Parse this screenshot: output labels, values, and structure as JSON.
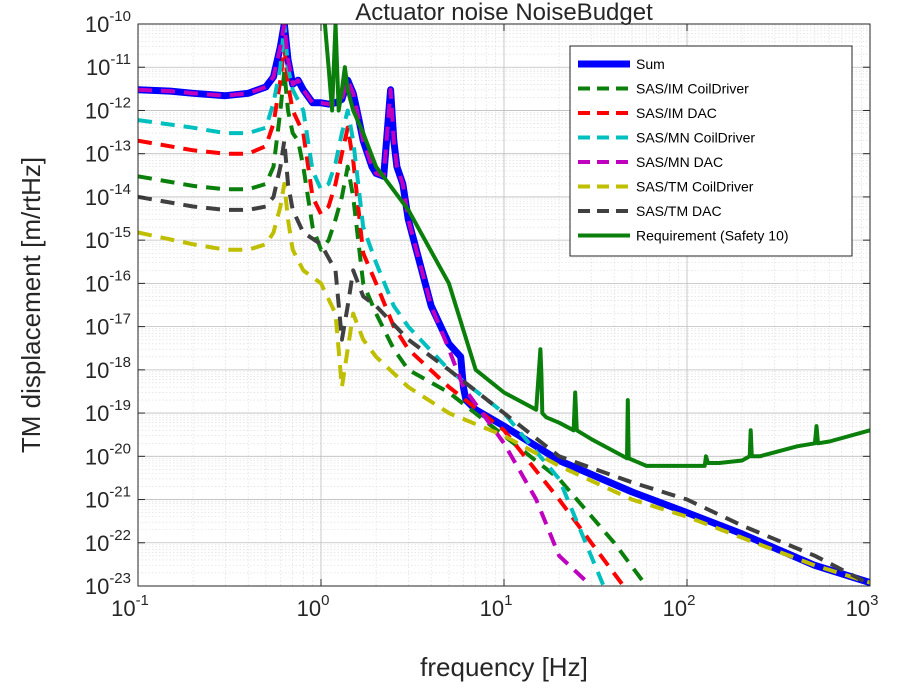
{
  "chart_data": {
    "type": "line",
    "title": "Actuator noise NoiseBudget",
    "xlabel": "frequency [Hz]",
    "ylabel": "TM displacement [m/rtHz]",
    "xscale": "log",
    "yscale": "log",
    "xlim": [
      0.1,
      1000
    ],
    "ylim": [
      1e-23,
      1e-10
    ],
    "grid": true,
    "minor_grid": true,
    "legend_position": "top-right",
    "x_ticks": [
      {
        "base": "10",
        "exp": "-1"
      },
      {
        "base": "10",
        "exp": "0"
      },
      {
        "base": "10",
        "exp": "1"
      },
      {
        "base": "10",
        "exp": "2"
      },
      {
        "base": "10",
        "exp": "3"
      }
    ],
    "y_ticks": [
      {
        "base": "10",
        "exp": "-10"
      },
      {
        "base": "10",
        "exp": "-11"
      },
      {
        "base": "10",
        "exp": "-12"
      },
      {
        "base": "10",
        "exp": "-13"
      },
      {
        "base": "10",
        "exp": "-14"
      },
      {
        "base": "10",
        "exp": "-15"
      },
      {
        "base": "10",
        "exp": "-16"
      },
      {
        "base": "10",
        "exp": "-17"
      },
      {
        "base": "10",
        "exp": "-18"
      },
      {
        "base": "10",
        "exp": "-19"
      },
      {
        "base": "10",
        "exp": "-20"
      },
      {
        "base": "10",
        "exp": "-21"
      },
      {
        "base": "10",
        "exp": "-22"
      },
      {
        "base": "10",
        "exp": "-23"
      }
    ],
    "series": [
      {
        "name": "Sum",
        "color": "#0000ff",
        "style": "solid",
        "width": 7,
        "x": [
          0.1,
          0.15,
          0.2,
          0.3,
          0.4,
          0.5,
          0.55,
          0.6,
          0.63,
          0.66,
          0.7,
          0.75,
          0.8,
          0.9,
          1.0,
          1.1,
          1.2,
          1.3,
          1.4,
          1.5,
          1.6,
          1.7,
          1.9,
          2.0,
          2.2,
          2.4,
          2.5,
          2.6,
          2.8,
          3,
          4,
          5,
          5.8,
          6,
          6.2,
          7,
          10,
          20,
          50,
          100,
          200,
          500,
          1000
        ],
        "y": [
          3e-12,
          2.8e-12,
          2.5e-12,
          2.2e-12,
          2.5e-12,
          3.5e-12,
          6e-12,
          3e-11,
          1e-10,
          1.5e-11,
          4e-12,
          5e-12,
          3e-12,
          1.5e-12,
          1.5e-12,
          1.4e-12,
          1.5e-12,
          1.8e-12,
          5e-12,
          2.5e-12,
          7e-13,
          2e-13,
          5e-14,
          3.5e-14,
          3e-14,
          3e-12,
          2e-13,
          5e-14,
          2e-14,
          3e-15,
          3e-17,
          4e-18,
          2e-18,
          4e-19,
          2e-19,
          1.2e-19,
          5e-20,
          8e-21,
          1.5e-21,
          5e-22,
          1.6e-22,
          3e-23,
          1.2e-23
        ]
      },
      {
        "name": "SAS/IM CoilDriver",
        "color": "#0b7f0b",
        "style": "dashed",
        "width": 4,
        "x": [
          0.1,
          0.2,
          0.3,
          0.4,
          0.5,
          0.55,
          0.6,
          0.63,
          0.66,
          0.7,
          0.75,
          0.8,
          0.9,
          1.0,
          1.1,
          1.2,
          1.3,
          1.4,
          1.5,
          1.7,
          2,
          2.5,
          3,
          5,
          10,
          20,
          40,
          60
        ],
        "y": [
          3e-14,
          1.8e-14,
          1.5e-14,
          1.5e-14,
          2e-14,
          5e-14,
          1e-12,
          8e-12,
          1e-12,
          3e-13,
          2e-13,
          5e-14,
          2e-15,
          6e-16,
          1e-15,
          3e-15,
          1e-14,
          5e-14,
          1e-14,
          1e-16,
          2e-17,
          3e-18,
          1e-18,
          3e-19,
          3e-20,
          3e-21,
          1e-22,
          1e-23
        ]
      },
      {
        "name": "SAS/IM DAC",
        "color": "#ff0000",
        "style": "dashed",
        "width": 4,
        "x": [
          0.1,
          0.2,
          0.3,
          0.4,
          0.5,
          0.55,
          0.6,
          0.63,
          0.66,
          0.7,
          0.8,
          0.9,
          1.0,
          1.1,
          1.2,
          1.3,
          1.4,
          1.5,
          1.7,
          2,
          2.5,
          3,
          5,
          10,
          20,
          30,
          45
        ],
        "y": [
          2e-13,
          1.2e-13,
          1e-13,
          1e-13,
          1.5e-13,
          5e-13,
          5e-12,
          3e-11,
          4e-12,
          1e-12,
          3e-13,
          1e-14,
          4e-15,
          6e-15,
          2e-14,
          1e-13,
          4e-13,
          7e-14,
          5e-16,
          1e-16,
          1e-17,
          3e-18,
          4e-19,
          4e-20,
          1e-21,
          1e-22,
          1e-23
        ]
      },
      {
        "name": "SAS/MN CoilDriver",
        "color": "#00bfbf",
        "style": "dashed",
        "width": 4,
        "x": [
          0.1,
          0.2,
          0.3,
          0.4,
          0.5,
          0.55,
          0.6,
          0.63,
          0.66,
          0.7,
          0.8,
          0.9,
          1.0,
          1.1,
          1.2,
          1.3,
          1.4,
          1.5,
          1.7,
          2,
          2.5,
          3,
          5,
          10,
          20,
          35
        ],
        "y": [
          6e-13,
          4e-13,
          3e-13,
          3e-13,
          4e-13,
          1.5e-12,
          1e-11,
          1e-10,
          1e-11,
          3e-12,
          1e-12,
          4e-14,
          1.5e-14,
          2e-14,
          6e-14,
          3e-13,
          1e-12,
          2e-13,
          2e-15,
          3e-16,
          3e-17,
          1e-17,
          1e-18,
          1e-19,
          3e-21,
          1e-23
        ]
      },
      {
        "name": "SAS/MN DAC",
        "color": "#bf00bf",
        "style": "dashed",
        "width": 4,
        "x": [
          0.1,
          0.15,
          0.2,
          0.3,
          0.4,
          0.5,
          0.55,
          0.6,
          0.63,
          0.66,
          0.7,
          0.75,
          0.8,
          0.9,
          1.0,
          1.1,
          1.2,
          1.3,
          1.4,
          1.5,
          1.6,
          1.7,
          1.9,
          2.0,
          2.2,
          2.4,
          2.5,
          2.6,
          2.8,
          3,
          4,
          5,
          6,
          10,
          15,
          20,
          30
        ],
        "y": [
          3e-12,
          2.8e-12,
          2.5e-12,
          2.2e-12,
          2.5e-12,
          3.5e-12,
          6e-12,
          3e-11,
          1e-10,
          1.5e-11,
          4e-12,
          5e-12,
          3e-12,
          1.5e-12,
          1.5e-12,
          1.4e-12,
          1.5e-12,
          1.8e-12,
          5e-12,
          2.5e-12,
          7e-13,
          2e-13,
          5e-14,
          3.5e-14,
          3e-14,
          3e-12,
          2e-13,
          5e-14,
          2e-14,
          3e-15,
          3e-17,
          3e-18,
          4e-19,
          2e-20,
          1e-21,
          5e-23,
          1e-23
        ]
      },
      {
        "name": "SAS/TM CoilDriver",
        "color": "#bfbf00",
        "style": "dashed",
        "width": 4,
        "x": [
          0.1,
          0.2,
          0.3,
          0.4,
          0.5,
          0.55,
          0.6,
          0.63,
          0.66,
          0.7,
          0.8,
          1.0,
          1.2,
          1.3,
          1.4,
          1.5,
          1.7,
          2,
          3,
          5,
          10,
          20,
          50,
          100,
          200,
          500,
          1000
        ],
        "y": [
          1.5e-15,
          8e-16,
          6e-16,
          6e-16,
          8e-16,
          1.5e-15,
          6e-15,
          2e-14,
          3e-15,
          6e-16,
          2e-16,
          1e-16,
          2e-17,
          4e-19,
          3e-18,
          2e-17,
          5e-18,
          2e-18,
          4e-19,
          1e-19,
          3e-20,
          6e-21,
          1e-21,
          4e-22,
          1.3e-22,
          3e-23,
          1.2e-23
        ]
      },
      {
        "name": "SAS/TM DAC",
        "color": "#404040",
        "style": "dashed",
        "width": 4,
        "x": [
          0.1,
          0.2,
          0.3,
          0.4,
          0.5,
          0.55,
          0.6,
          0.63,
          0.66,
          0.7,
          0.8,
          1.0,
          1.2,
          1.3,
          1.4,
          1.5,
          1.7,
          2,
          3,
          5,
          10,
          20,
          50,
          100,
          200,
          500,
          1000
        ],
        "y": [
          1e-14,
          6e-15,
          5e-15,
          5e-15,
          6e-15,
          1e-14,
          5e-14,
          2e-13,
          2e-14,
          5e-15,
          1.5e-15,
          8e-16,
          2e-16,
          5e-18,
          3e-17,
          2e-16,
          5e-17,
          3e-17,
          5e-18,
          1e-18,
          1e-19,
          1e-20,
          2.5e-21,
          1e-21,
          2.5e-22,
          5e-23,
          1.1e-23
        ]
      },
      {
        "name": "Requirement (Safety 10)",
        "color": "#0b7f0b",
        "style": "solid",
        "width": 4,
        "x": [
          1.05,
          1.1,
          1.15,
          1.2,
          1.25,
          1.3,
          1.35,
          1.4,
          1.5,
          1.7,
          2,
          3,
          5,
          7,
          10,
          15,
          15.8,
          16,
          16.2,
          17,
          20,
          24,
          24.5,
          25,
          30,
          40,
          47,
          47.5,
          48,
          60,
          80,
          100,
          125,
          127,
          130,
          150,
          200,
          220,
          223,
          226,
          250,
          400,
          500,
          510,
          520,
          600,
          1000
        ],
        "y": [
          1e-10,
          1e-11,
          1e-12,
          1e-10,
          1e-12,
          3e-12,
          1e-11,
          3e-12,
          1e-12,
          3e-13,
          5e-14,
          5e-15,
          1e-16,
          1e-18,
          3e-19,
          1.2e-19,
          3e-18,
          8e-19,
          1e-19,
          8e-20,
          6e-20,
          4e-20,
          3e-19,
          4e-20,
          2.5e-20,
          1.3e-20,
          9e-21,
          2e-19,
          9e-21,
          6e-21,
          6e-21,
          6e-21,
          6e-21,
          1e-20,
          7e-21,
          7e-21,
          8e-21,
          1e-20,
          4e-20,
          1e-20,
          1e-20,
          1.7e-20,
          2e-20,
          5e-20,
          2e-20,
          2.2e-20,
          4e-20
        ]
      }
    ]
  }
}
